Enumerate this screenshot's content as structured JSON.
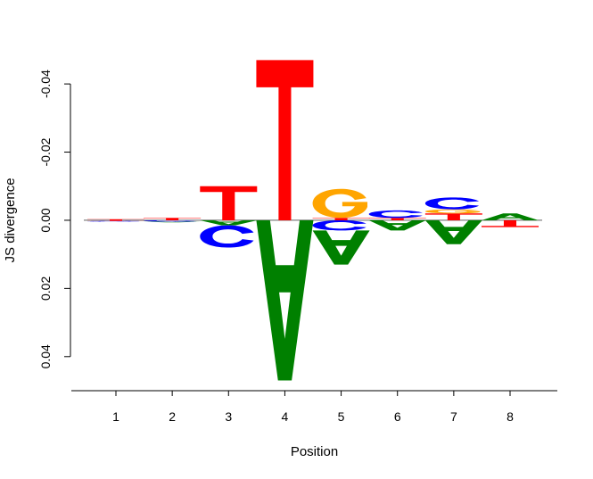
{
  "chart_data": {
    "type": "sequence-logo",
    "xlabel": "Position",
    "ylabel": "JS divergence",
    "ylim": [
      0.05,
      -0.045
    ],
    "y_ticks": [
      0.04,
      0.02,
      0.0,
      -0.02,
      -0.04
    ],
    "y_tick_labels": [
      "0.04",
      "0.02",
      "0.00",
      "-0.02",
      "-0.04"
    ],
    "positions": [
      1,
      2,
      3,
      4,
      5,
      6,
      7,
      8
    ],
    "x_tick_labels": [
      "1",
      "2",
      "3",
      "4",
      "5",
      "6",
      "7",
      "8"
    ],
    "letter_colors": {
      "A": "#008000",
      "C": "#0000ff",
      "G": "#ffa500",
      "T": "#ff0000"
    },
    "stacks": [
      {
        "position": 1,
        "above": [
          [
            "T",
            0.0003
          ]
        ],
        "below": [
          [
            "T",
            0.0002
          ],
          [
            "C",
            0.0002
          ]
        ]
      },
      {
        "position": 2,
        "above": [
          [
            "T",
            0.0007
          ]
        ],
        "below": [
          [
            "C",
            0.0004
          ],
          [
            "A",
            0.0002
          ]
        ]
      },
      {
        "position": 3,
        "above": [
          [
            "T",
            0.01
          ]
        ],
        "below": [
          [
            "A",
            0.0015
          ],
          [
            "C",
            0.0065
          ]
        ]
      },
      {
        "position": 4,
        "above": [
          [
            "T",
            0.047
          ]
        ],
        "below": [
          [
            "A",
            0.047
          ]
        ]
      },
      {
        "position": 5,
        "above": [
          [
            "T",
            0.0007
          ],
          [
            "G",
            0.0085
          ]
        ],
        "below": [
          [
            "C",
            0.003
          ],
          [
            "A",
            0.01
          ]
        ]
      },
      {
        "position": 6,
        "above": [
          [
            "T",
            0.0007
          ],
          [
            "C",
            0.0022
          ]
        ],
        "below": [
          [
            "A",
            0.003
          ]
        ]
      },
      {
        "position": 7,
        "above": [
          [
            "T",
            0.002
          ],
          [
            "G",
            0.0012
          ],
          [
            "C",
            0.0035
          ]
        ],
        "below": [
          [
            "A",
            0.007
          ]
        ]
      },
      {
        "position": 8,
        "above": [
          [
            "A",
            0.002
          ]
        ],
        "below": [
          [
            "T",
            0.002
          ]
        ]
      }
    ]
  }
}
